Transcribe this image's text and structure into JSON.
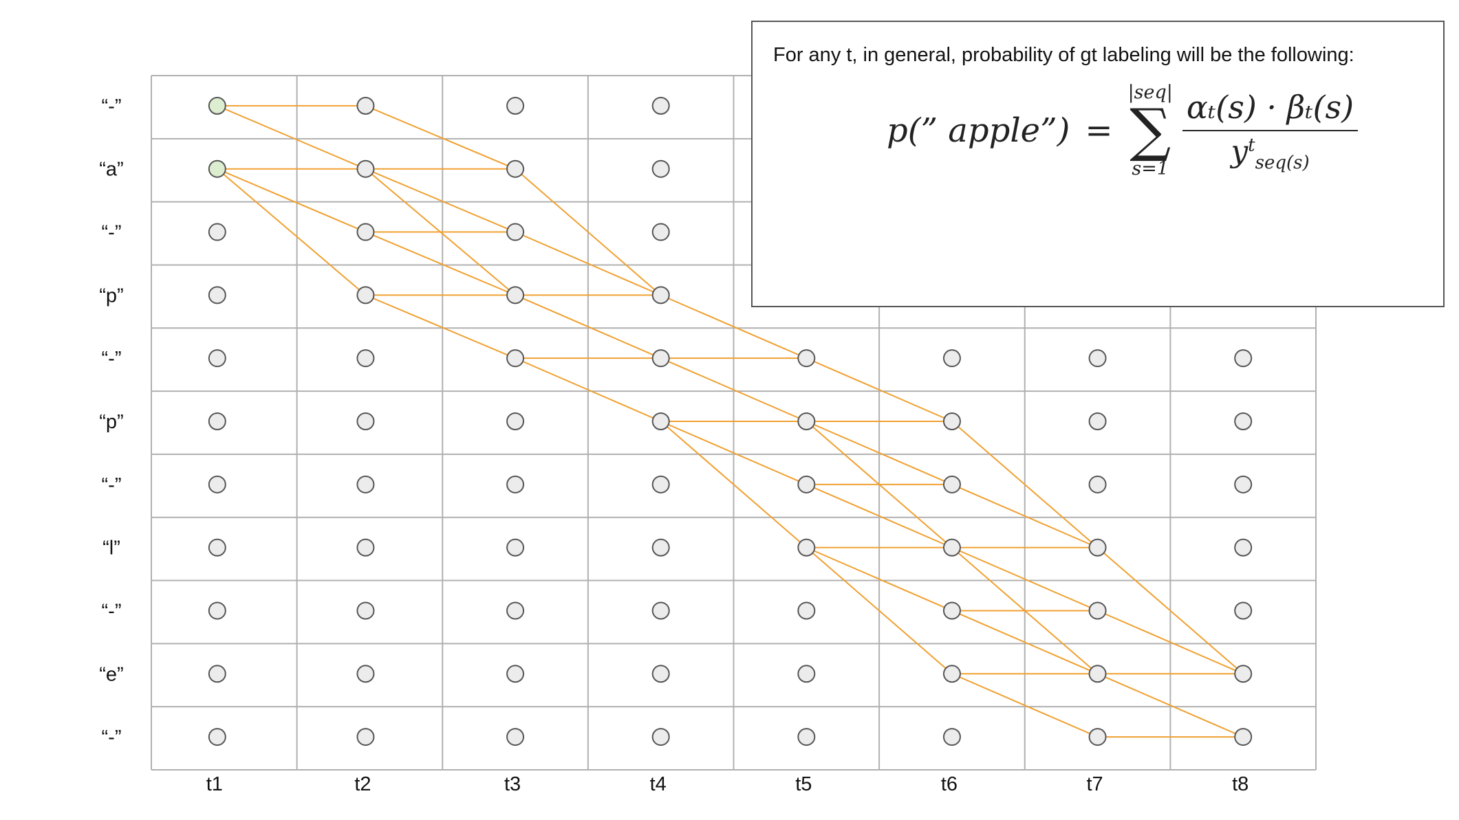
{
  "grid": {
    "row_labels": [
      "“-”",
      "“a”",
      "“-”",
      "“p”",
      "“-”",
      "“p”",
      "“-”",
      "“l”",
      "“-”",
      "“e”",
      "“-”"
    ],
    "col_labels": [
      "t1",
      "t2",
      "t3",
      "t4",
      "t5",
      "t6",
      "t7",
      "t8"
    ],
    "start_nodes": [
      [
        0,
        0
      ],
      [
        0,
        1
      ]
    ],
    "colors": {
      "grid_line": "#b0b0b0",
      "edge": "#f0a030",
      "node_fill": "#ececec",
      "node_stroke": "#555555",
      "start_node_fill": "#dcedd0"
    },
    "edges": [
      [
        0,
        0,
        1,
        0
      ],
      [
        0,
        0,
        1,
        1
      ],
      [
        0,
        1,
        1,
        1
      ],
      [
        0,
        1,
        1,
        2
      ],
      [
        0,
        1,
        1,
        3
      ],
      [
        1,
        0,
        2,
        1
      ],
      [
        1,
        1,
        2,
        1
      ],
      [
        1,
        1,
        2,
        2
      ],
      [
        1,
        1,
        2,
        3
      ],
      [
        1,
        2,
        2,
        2
      ],
      [
        1,
        2,
        2,
        3
      ],
      [
        1,
        3,
        2,
        3
      ],
      [
        1,
        3,
        2,
        4
      ],
      [
        2,
        1,
        3,
        3
      ],
      [
        2,
        2,
        3,
        3
      ],
      [
        2,
        3,
        3,
        3
      ],
      [
        2,
        3,
        3,
        4
      ],
      [
        2,
        4,
        3,
        4
      ],
      [
        2,
        4,
        3,
        5
      ],
      [
        3,
        3,
        4,
        4
      ],
      [
        3,
        4,
        4,
        4
      ],
      [
        3,
        4,
        4,
        5
      ],
      [
        3,
        5,
        4,
        5
      ],
      [
        3,
        5,
        4,
        6
      ],
      [
        3,
        5,
        4,
        7
      ],
      [
        4,
        4,
        5,
        5
      ],
      [
        4,
        5,
        5,
        5
      ],
      [
        4,
        5,
        5,
        6
      ],
      [
        4,
        5,
        5,
        7
      ],
      [
        4,
        6,
        5,
        6
      ],
      [
        4,
        6,
        5,
        7
      ],
      [
        4,
        7,
        5,
        7
      ],
      [
        4,
        7,
        5,
        8
      ],
      [
        4,
        7,
        5,
        9
      ],
      [
        5,
        5,
        6,
        7
      ],
      [
        5,
        6,
        6,
        7
      ],
      [
        5,
        7,
        6,
        7
      ],
      [
        5,
        7,
        6,
        8
      ],
      [
        5,
        7,
        6,
        9
      ],
      [
        5,
        8,
        6,
        8
      ],
      [
        5,
        8,
        6,
        9
      ],
      [
        5,
        9,
        6,
        9
      ],
      [
        5,
        9,
        6,
        10
      ],
      [
        6,
        7,
        7,
        9
      ],
      [
        6,
        8,
        7,
        9
      ],
      [
        6,
        9,
        7,
        9
      ],
      [
        6,
        9,
        7,
        10
      ],
      [
        6,
        10,
        7,
        10
      ]
    ]
  },
  "callout": {
    "text": "For any t, in general, probability of gt labeling will be the following:",
    "formula": {
      "lhs": "p(” apple”)",
      "eq": "=",
      "sum_upper": "|seq|",
      "sum_symbol": "∑",
      "sum_lower": "s=1",
      "numerator": "αₜ(s) · βₜ(s)",
      "den_base": "y",
      "den_sup": "t",
      "den_sub": "seq(s)"
    }
  }
}
